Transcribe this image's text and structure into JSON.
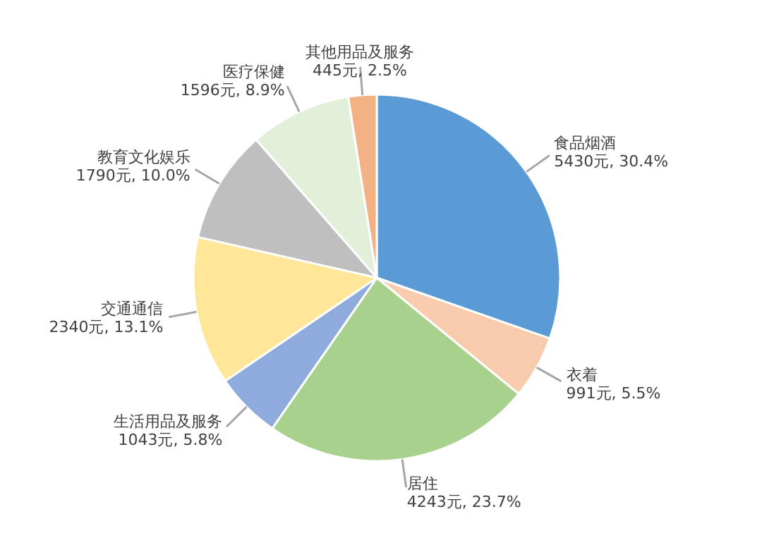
{
  "chart_data": {
    "type": "pie",
    "categories": [
      "食品烟酒",
      "衣着",
      "居住",
      "生活用品及服务",
      "交通通信",
      "教育文化娱乐",
      "医疗保健",
      "其他用品及服务"
    ],
    "values": [
      5430,
      991,
      4243,
      1043,
      2340,
      1790,
      1596,
      445
    ],
    "value_labels": [
      "5430元, 30.4%",
      "991元, 5.5%",
      "4243元, 23.7%",
      "1043元, 5.8%",
      "2340元, 13.1%",
      "1790元, 10.0%",
      "1596元, 8.9%",
      "445元, 2.5%"
    ],
    "colors": [
      "#5b9bd5",
      "#f8cbad",
      "#a9d18e",
      "#8faadc",
      "#ffe699",
      "#bfbfbf",
      "#e2f0d9",
      "#f4b183"
    ],
    "legend": false
  }
}
